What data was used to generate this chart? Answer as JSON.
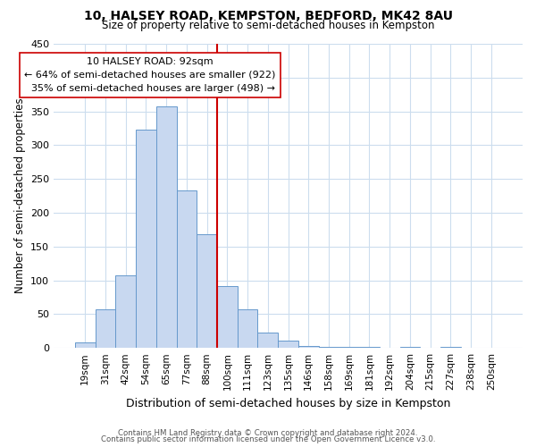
{
  "title1": "10, HALSEY ROAD, KEMPSTON, BEDFORD, MK42 8AU",
  "title2": "Size of property relative to semi-detached houses in Kempston",
  "xlabel": "Distribution of semi-detached houses by size in Kempston",
  "ylabel": "Number of semi-detached properties",
  "bar_labels": [
    "19sqm",
    "31sqm",
    "42sqm",
    "54sqm",
    "65sqm",
    "77sqm",
    "88sqm",
    "100sqm",
    "111sqm",
    "123sqm",
    "135sqm",
    "146sqm",
    "158sqm",
    "169sqm",
    "181sqm",
    "192sqm",
    "204sqm",
    "215sqm",
    "227sqm",
    "238sqm",
    "250sqm"
  ],
  "bar_values": [
    8,
    57,
    108,
    323,
    358,
    233,
    168,
    91,
    57,
    23,
    11,
    3,
    2,
    1,
    2,
    0,
    1,
    0,
    1,
    0,
    0
  ],
  "property_line_index": 6,
  "smaller_pct": 64,
  "smaller_count": 922,
  "larger_pct": 35,
  "larger_count": 498,
  "annotation_address": "10 HALSEY ROAD: 92sqm",
  "bar_color": "#c8d8f0",
  "bar_edge_color": "#6699cc",
  "line_color": "#cc0000",
  "ylim": [
    0,
    450
  ],
  "yticks": [
    0,
    50,
    100,
    150,
    200,
    250,
    300,
    350,
    400,
    450
  ],
  "footer1": "Contains HM Land Registry data © Crown copyright and database right 2024.",
  "footer2": "Contains public sector information licensed under the Open Government Licence v3.0.",
  "bg_color": "#ffffff",
  "grid_color": "#ccddee"
}
